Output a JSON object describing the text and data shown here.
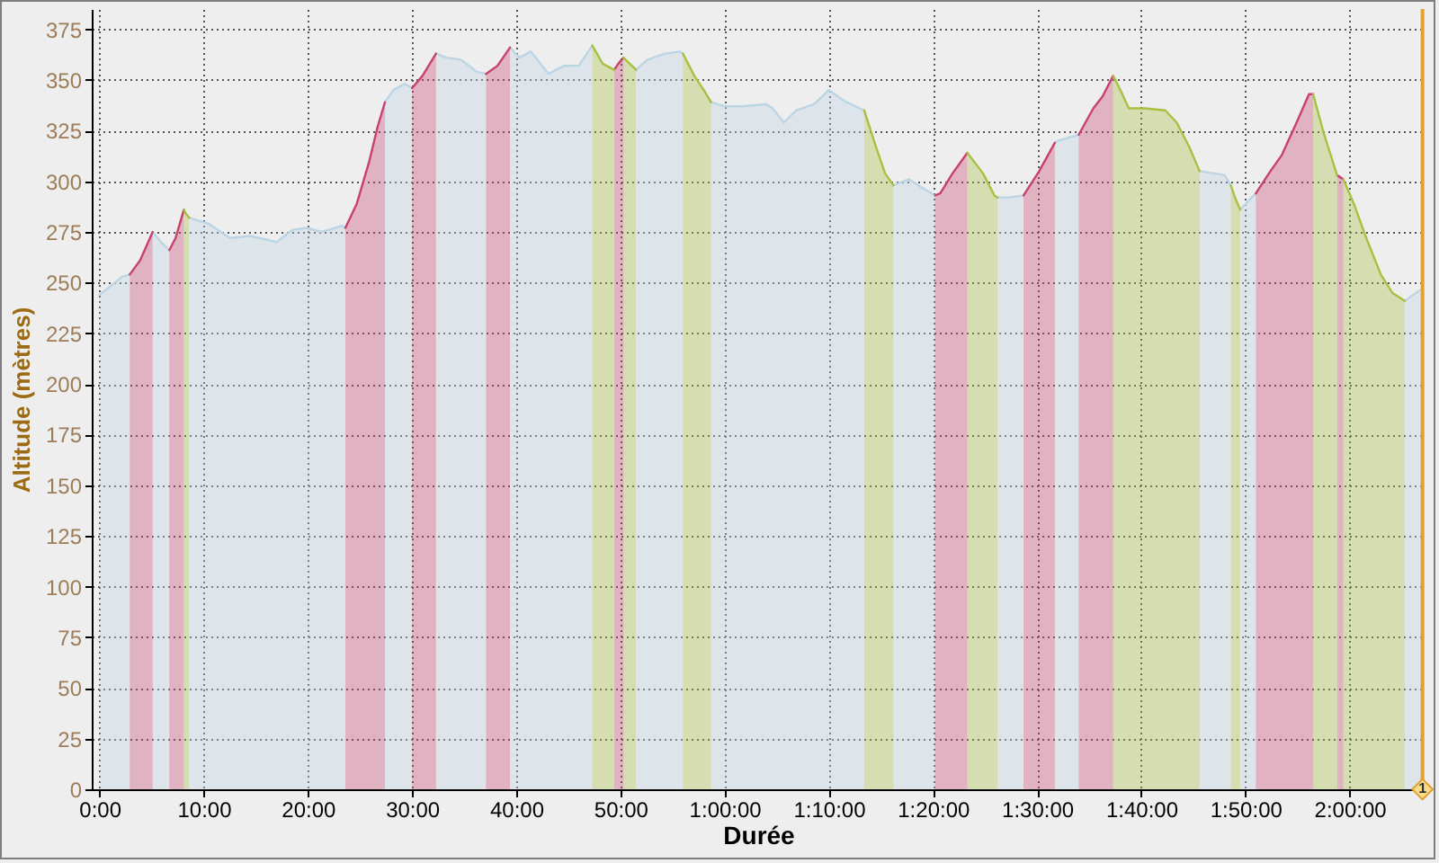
{
  "chart_data": {
    "type": "area",
    "xlabel": "Durée",
    "ylabel": "Altitude (mètres)",
    "xlim": [
      -0.75,
      127.2
    ],
    "ylim": [
      0,
      385
    ],
    "xticks": [
      {
        "value": 0,
        "label": "0:00"
      },
      {
        "value": 10,
        "label": "10:00"
      },
      {
        "value": 20,
        "label": "20:00"
      },
      {
        "value": 30,
        "label": "30:00"
      },
      {
        "value": 40,
        "label": "40:00"
      },
      {
        "value": 50,
        "label": "50:00"
      },
      {
        "value": 60,
        "label": "1:00:00"
      },
      {
        "value": 70,
        "label": "1:10:00"
      },
      {
        "value": 80,
        "label": "1:20:00"
      },
      {
        "value": 90,
        "label": "1:30:00"
      },
      {
        "value": 100,
        "label": "1:40:00"
      },
      {
        "value": 110,
        "label": "1:50:00"
      },
      {
        "value": 120,
        "label": "2:00:00"
      }
    ],
    "yticks": [
      0,
      25,
      50,
      75,
      100,
      125,
      150,
      175,
      200,
      225,
      250,
      275,
      300,
      325,
      350,
      375
    ],
    "grid": true,
    "series": [
      {
        "color": "#bcd5e4",
        "x": [
          0,
          2.2,
          2.9,
          4,
          5.1,
          5.9,
          6.7,
          7.5,
          8.6,
          10.5,
          12.5,
          14.5,
          17,
          18.5,
          19.9,
          21.3,
          23.3,
          23.6,
          25,
          27.4,
          28.2,
          29.3,
          30,
          31,
          32.3,
          33.3,
          34.7,
          36.2,
          37.1,
          38,
          39.4,
          40.3,
          41.4,
          43.1,
          44.6,
          46,
          47.3,
          48,
          51.5,
          52.6,
          54.3,
          55.7,
          56,
          57.3,
          58.7,
          60,
          61.7,
          64,
          64.6,
          65.7,
          66.9,
          68.6,
          70,
          71.7,
          73.4,
          75,
          76.2,
          77.7,
          78.9,
          80.2,
          83,
          86.2,
          87.4,
          88.7,
          90,
          91.7,
          92,
          94,
          100,
          105.6,
          106.9,
          108,
          108.6,
          109,
          109.5,
          110.6,
          111,
          115,
          125.3,
          126.1,
          127
        ],
        "values": [
          244,
          253,
          254,
          null,
          275,
          270,
          266,
          null,
          282,
          279,
          272,
          273,
          270,
          276,
          277,
          275,
          278,
          277,
          null,
          339,
          345,
          348,
          346,
          null,
          363,
          361,
          360,
          354,
          353,
          null,
          366,
          361,
          364,
          353,
          357,
          357,
          367,
          null,
          355,
          360,
          363,
          364,
          363,
          null,
          339,
          337,
          337,
          338,
          336,
          329,
          335,
          338,
          345,
          339,
          335,
          null,
          298,
          301,
          297,
          293,
          null,
          292,
          292,
          293,
          null,
          319,
          320,
          323,
          null,
          305,
          304,
          303,
          298,
          null,
          286,
          292,
          294,
          null,
          241,
          244,
          247
        ]
      },
      {
        "color": "#c8416e",
        "x": [
          2.9,
          3.9,
          5.1,
          6,
          6.7,
          7.3,
          8.1,
          15,
          23.6,
          24.7,
          25.9,
          26.7,
          27.4,
          28.5,
          30,
          31,
          32.3,
          35,
          37.1,
          38.2,
          39.4,
          44,
          49.4,
          49.8,
          50.3,
          65,
          80.2,
          80.7,
          81.9,
          83.3,
          86,
          88.7,
          90.2,
          91.7,
          93,
          94,
          95.4,
          96.3,
          97.3,
          104,
          111,
          112.4,
          113.5,
          115,
          116.1,
          116.5,
          117.5,
          118.8,
          119.1,
          119.4
        ],
        "values": [
          254,
          261,
          275,
          null,
          266,
          272,
          286,
          null,
          277,
          289,
          310,
          327,
          339,
          null,
          346,
          352,
          363,
          null,
          353,
          357,
          366,
          null,
          355,
          358,
          361,
          null,
          293,
          294,
          304,
          314,
          null,
          293,
          305,
          319,
          null,
          323,
          336,
          342,
          352,
          null,
          294,
          305,
          313,
          330,
          343,
          343,
          null,
          303,
          302,
          301
        ]
      },
      {
        "color": "#a8c040",
        "x": [
          8.1,
          8.3,
          8.6,
          30,
          47.3,
          48.3,
          49.4,
          49.8,
          50.3,
          50.9,
          51.5,
          53,
          56,
          57.1,
          58,
          58.7,
          66,
          73.4,
          74.6,
          75.4,
          76.2,
          80,
          83.3,
          84.8,
          85.9,
          86.2,
          92,
          97.3,
          98,
          98.8,
          100.3,
          102.3,
          103.4,
          104.6,
          105.6,
          107,
          108.6,
          109,
          109.5,
          112,
          116.5,
          117.5,
          118.8,
          119.1,
          119.4,
          120.4,
          121.6,
          123,
          124.1,
          125.3
        ],
        "values": [
          286,
          284,
          282,
          null,
          367,
          358,
          355,
          null,
          361,
          358,
          355,
          null,
          363,
          352,
          345,
          339,
          null,
          335,
          316,
          304,
          298,
          null,
          314,
          304,
          293,
          292,
          null,
          352,
          345,
          336,
          336,
          335,
          329,
          317,
          305,
          null,
          298,
          292,
          286,
          null,
          343,
          324,
          303,
          null,
          301,
          289,
          272,
          254,
          245,
          241
        ]
      }
    ],
    "ref_lines": [
      {
        "axis": "x",
        "value": 127,
        "color": "#e2a030"
      }
    ],
    "annotations": [
      {
        "text": "1",
        "x": 127,
        "y": 0
      }
    ]
  }
}
